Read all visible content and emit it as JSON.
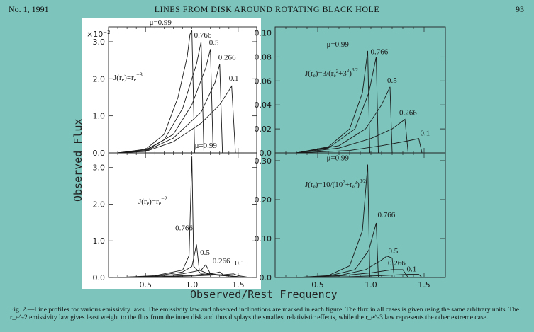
{
  "header": {
    "left": "No. 1, 1991",
    "title": "LINES FROM DISK AROUND ROTATING BLACK HOLE",
    "right": "93"
  },
  "caption": "Fig. 2.—Line profiles for various emissivity laws. The emissivity law and observed inclinations are marked in each figure. The flux in all cases is given using the same arbitrary units. The r_e^-2 emissivity law gives least weight to the flux from the inner disk and thus displays the smallest relativistic effects, while the r_e^-3 law represents the other extreme case.",
  "figure": {
    "xlabel": "Observed/Rest Frequency",
    "ylabel": "Observed Flux",
    "xticks": [
      "0.5",
      "1.0",
      "1.5"
    ],
    "panels": [
      {
        "law": "J(r_e)=r_e^-3",
        "scale_note": "×10^-2",
        "yticks": [
          "0.0",
          "1.0",
          "2.0",
          "3.0"
        ],
        "curve_labels": [
          "μ=0.99",
          "0.766",
          "0.5",
          "0.266",
          "0.1"
        ]
      },
      {
        "law": "J(r_e)=3/(r_e^2+3^2)^3/2",
        "yticks": [
          "0.0",
          "0.02",
          "0.04",
          "0.06",
          "0.08",
          "0.10"
        ],
        "curve_labels": [
          "μ=0.99",
          "0.766",
          "0.5",
          "0.266",
          "0.1"
        ]
      },
      {
        "law": "J(r_e)=r_e^-2",
        "yticks": [
          "0.0",
          "1.0",
          "2.0",
          "3.0"
        ],
        "curve_labels": [
          "μ=0.99",
          "0.766",
          "0.5",
          "0.266",
          "0.1"
        ]
      },
      {
        "law": "J(r_e)=10/(10^2+r_e^2)^3/2",
        "yticks": [
          "0.0",
          "0.10",
          "0.20",
          "0.30"
        ],
        "curve_labels": [
          "μ=0.99",
          "0.766",
          "0.5",
          "0.266",
          "0.1"
        ]
      }
    ]
  },
  "chart_data": [
    {
      "type": "line",
      "title": "J(r_e)=r_e^-3",
      "xlim": [
        0.1,
        1.7
      ],
      "ylim": [
        0,
        3.4
      ],
      "y_scale_note": "×10^-2",
      "series": [
        {
          "name": "μ=0.99",
          "x": [
            0.2,
            0.5,
            0.7,
            0.85,
            0.95,
            0.98,
            1.0,
            1.03
          ],
          "y": [
            0,
            0.1,
            0.5,
            1.5,
            2.6,
            3.2,
            3.3,
            0
          ]
        },
        {
          "name": "0.766",
          "x": [
            0.2,
            0.5,
            0.7,
            0.9,
            1.05,
            1.1,
            1.13
          ],
          "y": [
            0,
            0.08,
            0.35,
            1.2,
            2.4,
            3.0,
            0
          ]
        },
        {
          "name": "0.5",
          "x": [
            0.2,
            0.5,
            0.8,
            1.0,
            1.15,
            1.2,
            1.23
          ],
          "y": [
            0,
            0.06,
            0.5,
            1.3,
            2.3,
            2.8,
            0
          ]
        },
        {
          "name": "0.266",
          "x": [
            0.2,
            0.5,
            0.8,
            1.1,
            1.25,
            1.3,
            1.33
          ],
          "y": [
            0,
            0.05,
            0.4,
            1.1,
            1.9,
            2.4,
            0
          ]
        },
        {
          "name": "0.1",
          "x": [
            0.2,
            0.5,
            0.8,
            1.1,
            1.3,
            1.43,
            1.47
          ],
          "y": [
            0,
            0.04,
            0.3,
            0.8,
            1.3,
            1.8,
            0
          ]
        }
      ]
    },
    {
      "type": "line",
      "title": "J(r_e)=3/(r_e^2+3^2)^3/2",
      "xlim": [
        0.1,
        1.7
      ],
      "ylim": [
        0,
        0.105
      ],
      "series": [
        {
          "name": "μ=0.99",
          "x": [
            0.3,
            0.6,
            0.8,
            0.92,
            0.97,
            0.99
          ],
          "y": [
            0,
            0.005,
            0.02,
            0.05,
            0.085,
            0.0
          ]
        },
        {
          "name": "0.766",
          "x": [
            0.3,
            0.6,
            0.85,
            0.98,
            1.05,
            1.07
          ],
          "y": [
            0,
            0.004,
            0.02,
            0.05,
            0.08,
            0.0
          ]
        },
        {
          "name": "0.5",
          "x": [
            0.3,
            0.7,
            0.95,
            1.1,
            1.18,
            1.2
          ],
          "y": [
            0,
            0.006,
            0.02,
            0.04,
            0.055,
            0.0
          ]
        },
        {
          "name": "0.266",
          "x": [
            0.3,
            0.7,
            1.0,
            1.2,
            1.32,
            1.35
          ],
          "y": [
            0,
            0.004,
            0.012,
            0.02,
            0.028,
            0.0
          ]
        },
        {
          "name": "0.1",
          "x": [
            0.3,
            0.8,
            1.1,
            1.35,
            1.45,
            1.48
          ],
          "y": [
            0,
            0.002,
            0.006,
            0.01,
            0.012,
            0.0
          ]
        }
      ]
    },
    {
      "type": "line",
      "title": "J(r_e)=r_e^-2",
      "xlim": [
        0.1,
        1.7
      ],
      "ylim": [
        0,
        3.4
      ],
      "series": [
        {
          "name": "μ=0.99",
          "x": [
            0.2,
            0.6,
            0.9,
            0.97,
            1.0,
            1.02,
            1.1,
            1.5
          ],
          "y": [
            0,
            0.05,
            0.2,
            0.6,
            3.3,
            0.3,
            0.1,
            0.02
          ]
        },
        {
          "name": "0.766",
          "x": [
            0.2,
            0.6,
            0.9,
            1.0,
            1.05,
            1.08,
            1.2,
            1.5
          ],
          "y": [
            0,
            0.04,
            0.15,
            0.3,
            0.9,
            0.2,
            0.08,
            0.02
          ]
        },
        {
          "name": "0.5",
          "x": [
            0.2,
            0.6,
            0.9,
            1.1,
            1.15,
            1.2,
            1.5
          ],
          "y": [
            0,
            0.03,
            0.1,
            0.2,
            0.35,
            0.1,
            0.02
          ]
        },
        {
          "name": "0.266",
          "x": [
            0.2,
            0.6,
            1.0,
            1.25,
            1.3,
            1.35,
            1.55
          ],
          "y": [
            0,
            0.02,
            0.06,
            0.12,
            0.15,
            0.05,
            0.01
          ]
        },
        {
          "name": "0.1",
          "x": [
            0.2,
            0.6,
            1.0,
            1.35,
            1.45,
            1.5,
            1.6
          ],
          "y": [
            0,
            0.01,
            0.04,
            0.08,
            0.1,
            0.05,
            0.01
          ]
        }
      ]
    },
    {
      "type": "line",
      "title": "J(r_e)=10/(10^2+r_e^2)^3/2",
      "xlim": [
        0.1,
        1.7
      ],
      "ylim": [
        0,
        0.32
      ],
      "series": [
        {
          "name": "μ=0.99",
          "x": [
            0.3,
            0.6,
            0.8,
            0.92,
            0.97,
            0.99
          ],
          "y": [
            0,
            0.005,
            0.03,
            0.12,
            0.29,
            0.0
          ]
        },
        {
          "name": "0.766",
          "x": [
            0.3,
            0.6,
            0.85,
            0.98,
            1.05,
            1.07
          ],
          "y": [
            0,
            0.004,
            0.02,
            0.07,
            0.14,
            0.0
          ]
        },
        {
          "name": "0.5",
          "x": [
            0.3,
            0.7,
            0.95,
            1.1,
            1.15,
            1.2,
            1.22
          ],
          "y": [
            0,
            0.005,
            0.02,
            0.045,
            0.055,
            0.05,
            0.0
          ]
        },
        {
          "name": "0.266",
          "x": [
            0.3,
            0.7,
            1.0,
            1.2,
            1.3,
            1.35
          ],
          "y": [
            0,
            0.004,
            0.012,
            0.02,
            0.02,
            0.0
          ]
        },
        {
          "name": "0.1",
          "x": [
            0.3,
            0.8,
            1.1,
            1.35,
            1.45,
            1.48
          ],
          "y": [
            0,
            0.002,
            0.005,
            0.008,
            0.008,
            0.0
          ]
        }
      ]
    }
  ]
}
